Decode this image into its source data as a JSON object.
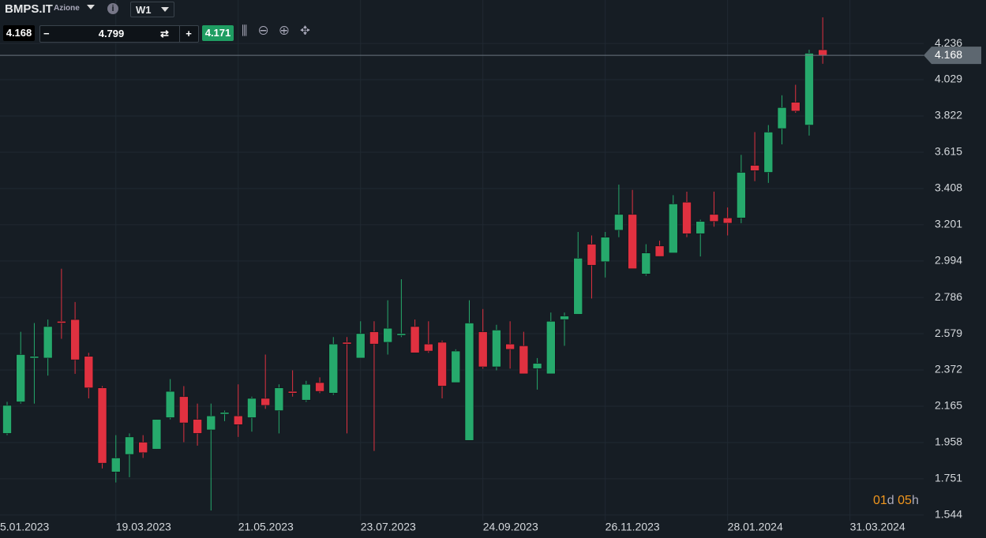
{
  "toolbar": {
    "symbol": "BMPS.IT",
    "kind": "Azione",
    "timeframe": "W1",
    "bid": "4.168",
    "quantity": "4.799",
    "ask": "4.171"
  },
  "countdown": [
    "01",
    "d",
    "05",
    "h"
  ],
  "chart_data": {
    "type": "candlestick",
    "categories": [
      null,
      null,
      null,
      null,
      null,
      null,
      null,
      null,
      null,
      null,
      null,
      null,
      null,
      null,
      null,
      null,
      null,
      null,
      null,
      null,
      null,
      null,
      null,
      null,
      null,
      null,
      null,
      null,
      null,
      null,
      null,
      null,
      null,
      null,
      null,
      null,
      null,
      null,
      null,
      null,
      null,
      null,
      null,
      null,
      null,
      null,
      null,
      null,
      null,
      null,
      null,
      null,
      null,
      null,
      null,
      null,
      null,
      null,
      null,
      null,
      null
    ],
    "open": [
      2.01,
      2.19,
      2.44,
      2.44,
      2.65,
      2.66,
      2.45,
      2.27,
      1.79,
      1.89,
      1.96,
      1.92,
      2.1,
      2.22,
      2.09,
      2.03,
      2.12,
      2.11,
      2.1,
      2.21,
      2.14,
      2.25,
      2.2,
      2.3,
      2.24,
      2.53,
      2.44,
      2.59,
      2.53,
      2.57,
      2.62,
      2.52,
      2.53,
      2.3,
      1.97,
      2.59,
      2.39,
      2.52,
      2.51,
      2.38,
      2.35,
      2.66,
      2.69,
      3.09,
      2.99,
      3.17,
      3.26,
      2.92,
      3.08,
      3.04,
      3.33,
      3.15,
      3.26,
      3.24,
      3.24,
      3.54,
      3.5,
      3.75,
      3.9,
      3.77,
      4.2
    ],
    "high": [
      2.19,
      2.59,
      2.64,
      2.66,
      2.95,
      2.76,
      2.47,
      2.28,
      2.0,
      2.01,
      2.0,
      2.09,
      2.32,
      2.28,
      2.18,
      2.18,
      2.14,
      2.29,
      2.22,
      2.46,
      2.29,
      2.37,
      2.31,
      2.33,
      2.56,
      2.56,
      2.65,
      2.65,
      2.77,
      2.89,
      2.66,
      2.65,
      2.54,
      2.49,
      2.77,
      2.72,
      2.63,
      2.65,
      2.59,
      2.44,
      2.7,
      2.7,
      3.16,
      3.14,
      3.16,
      3.43,
      3.4,
      3.09,
      3.11,
      3.37,
      3.39,
      3.23,
      3.39,
      3.3,
      3.6,
      3.73,
      3.77,
      3.94,
      4.0,
      4.2,
      4.385
    ],
    "low": [
      2.0,
      2.18,
      2.18,
      2.34,
      2.55,
      2.35,
      2.21,
      1.81,
      1.73,
      1.76,
      1.87,
      1.92,
      2.09,
      1.96,
      1.94,
      1.57,
      2.08,
      1.99,
      2.02,
      2.15,
      2.01,
      2.22,
      2.19,
      2.24,
      2.23,
      2.01,
      2.44,
      1.91,
      2.46,
      2.56,
      2.47,
      2.47,
      2.21,
      2.3,
      1.97,
      2.38,
      2.37,
      2.38,
      2.35,
      2.26,
      2.35,
      2.51,
      2.69,
      2.78,
      2.9,
      3.13,
      2.95,
      2.91,
      3.02,
      3.04,
      3.13,
      3.02,
      3.19,
      3.14,
      3.21,
      3.45,
      3.44,
      3.66,
      3.84,
      3.71,
      4.12
    ],
    "close": [
      2.17,
      2.46,
      2.45,
      2.62,
      2.64,
      2.43,
      2.27,
      1.84,
      1.87,
      1.99,
      1.9,
      2.09,
      2.25,
      2.07,
      2.01,
      2.11,
      2.13,
      2.06,
      2.21,
      2.17,
      2.27,
      2.24,
      2.29,
      2.25,
      2.52,
      2.52,
      2.58,
      2.52,
      2.61,
      2.58,
      2.47,
      2.48,
      2.28,
      2.48,
      2.64,
      2.39,
      2.6,
      2.49,
      2.35,
      2.41,
      2.65,
      2.68,
      3.01,
      2.97,
      3.13,
      3.26,
      2.95,
      3.04,
      3.02,
      3.32,
      3.15,
      3.22,
      3.22,
      3.21,
      3.5,
      3.51,
      3.73,
      3.87,
      3.85,
      4.18,
      4.168
    ],
    "up_color": "#26a96c",
    "down_color": "#e03140",
    "ylim": [
      1.512,
      4.484
    ],
    "yticks": [
      1.544,
      1.751,
      1.958,
      2.165,
      2.372,
      2.579,
      2.786,
      2.994,
      3.201,
      3.408,
      3.615,
      3.822,
      4.029,
      4.236
    ],
    "xticks": [
      {
        "value": -1,
        "label": "5.01.2023"
      },
      {
        "value": 8,
        "label": "19.03.2023"
      },
      {
        "value": 17,
        "label": "21.05.2023"
      },
      {
        "value": 26,
        "label": "23.07.2023"
      },
      {
        "value": 35,
        "label": "24.09.2023"
      },
      {
        "value": 44,
        "label": "26.11.2023"
      },
      {
        "value": 53,
        "label": "28.01.2024"
      },
      {
        "value": 62,
        "label": "31.03.2024"
      }
    ],
    "grid": true
  }
}
